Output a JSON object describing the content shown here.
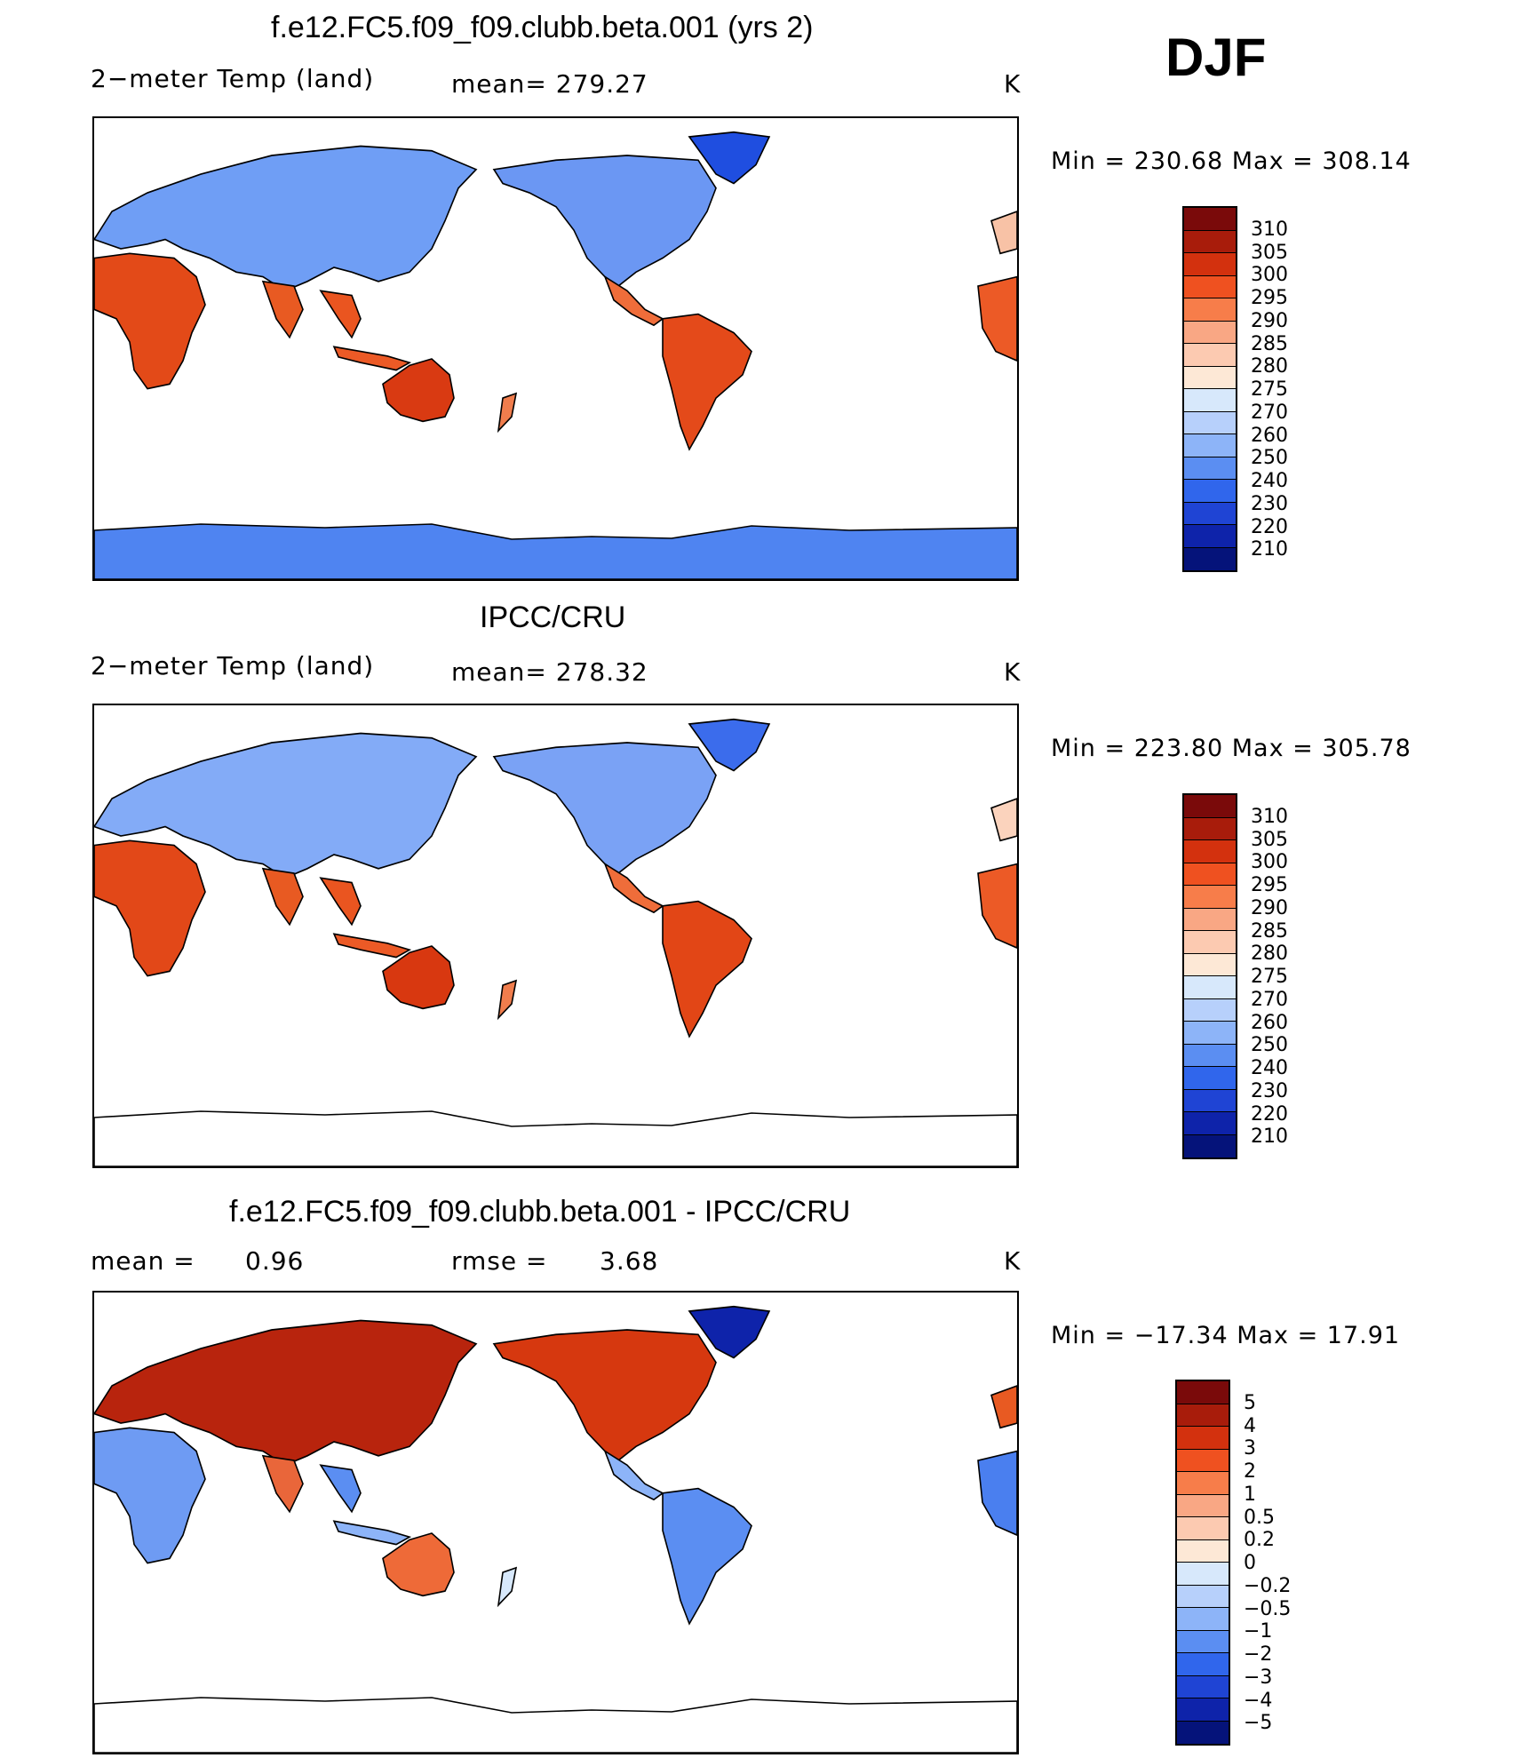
{
  "season": "DJF",
  "panels": [
    {
      "title": "f.e12.FC5.f09_f09.clubb.beta.001 (yrs 2)",
      "left_label": "2−meter Temp (land)",
      "mid_label": "mean= 279.27",
      "units": "K",
      "min_max": "Min = 230.68 Max = 308.14",
      "palette": "temp",
      "antarctica": true
    },
    {
      "title": "IPCC/CRU",
      "left_label": "2−meter Temp (land)",
      "mid_label": "mean= 278.32",
      "units": "K",
      "min_max": "Min = 223.80 Max = 305.78",
      "palette": "temp",
      "antarctica": false
    },
    {
      "title": "f.e12.FC5.f09_f09.clubb.beta.001 - IPCC/CRU",
      "left_label": "mean =",
      "left_value": "0.96",
      "mid_label": "rmse =",
      "mid_value": "3.68",
      "units": "K",
      "min_max": "Min = −17.34 Max =  17.91",
      "palette": "diff",
      "antarctica": false
    }
  ],
  "colorbars": {
    "temp": {
      "labels": [
        "310",
        "305",
        "300",
        "295",
        "290",
        "285",
        "280",
        "275",
        "270",
        "260",
        "250",
        "240",
        "230",
        "220",
        "210"
      ],
      "colors": [
        "#7a0a0a",
        "#a81c0b",
        "#d3310e",
        "#ef5120",
        "#f77d4a",
        "#f9a784",
        "#fccab1",
        "#fde8d6",
        "#d7e8fb",
        "#b7d0fb",
        "#8db4f8",
        "#5b8ef2",
        "#3066ec",
        "#1f44d4",
        "#0e23aa",
        "#05137a"
      ]
    },
    "diff": {
      "labels": [
        "5",
        "4",
        "3",
        "2",
        "1",
        "0.5",
        "0.2",
        "0",
        "−0.2",
        "−0.5",
        "−1",
        "−2",
        "−3",
        "−4",
        "−5"
      ],
      "colors": [
        "#7a0a0a",
        "#a81c0b",
        "#d3310e",
        "#ef5120",
        "#f77d4a",
        "#f9a784",
        "#fccab1",
        "#fde8d6",
        "#d7e8fb",
        "#b7d0fb",
        "#8db4f8",
        "#5b8ef2",
        "#3066ec",
        "#1f44d4",
        "#0e23aa",
        "#05137a"
      ]
    }
  }
}
